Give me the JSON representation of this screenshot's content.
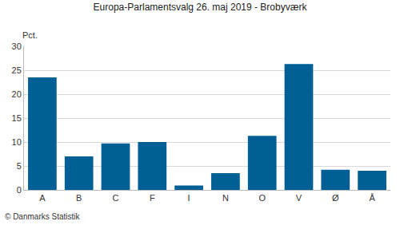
{
  "chart_data": {
    "type": "bar",
    "title": "Europa-Parlamentsvalg 26. maj 2019 - Brobyværk",
    "ylabel": "Pct.",
    "annotations": [
      "© Danmarks Statistik"
    ],
    "categories": [
      "A",
      "B",
      "C",
      "F",
      "I",
      "N",
      "O",
      "V",
      "Ø",
      "Å"
    ],
    "values": [
      23.5,
      7.0,
      9.7,
      10.0,
      0.9,
      3.5,
      11.3,
      26.3,
      4.2,
      4.0
    ],
    "color": "#005f95",
    "ylim": [
      0,
      30
    ],
    "yticks": [
      0,
      5,
      10,
      15,
      20,
      25,
      30
    ],
    "grid": true
  }
}
